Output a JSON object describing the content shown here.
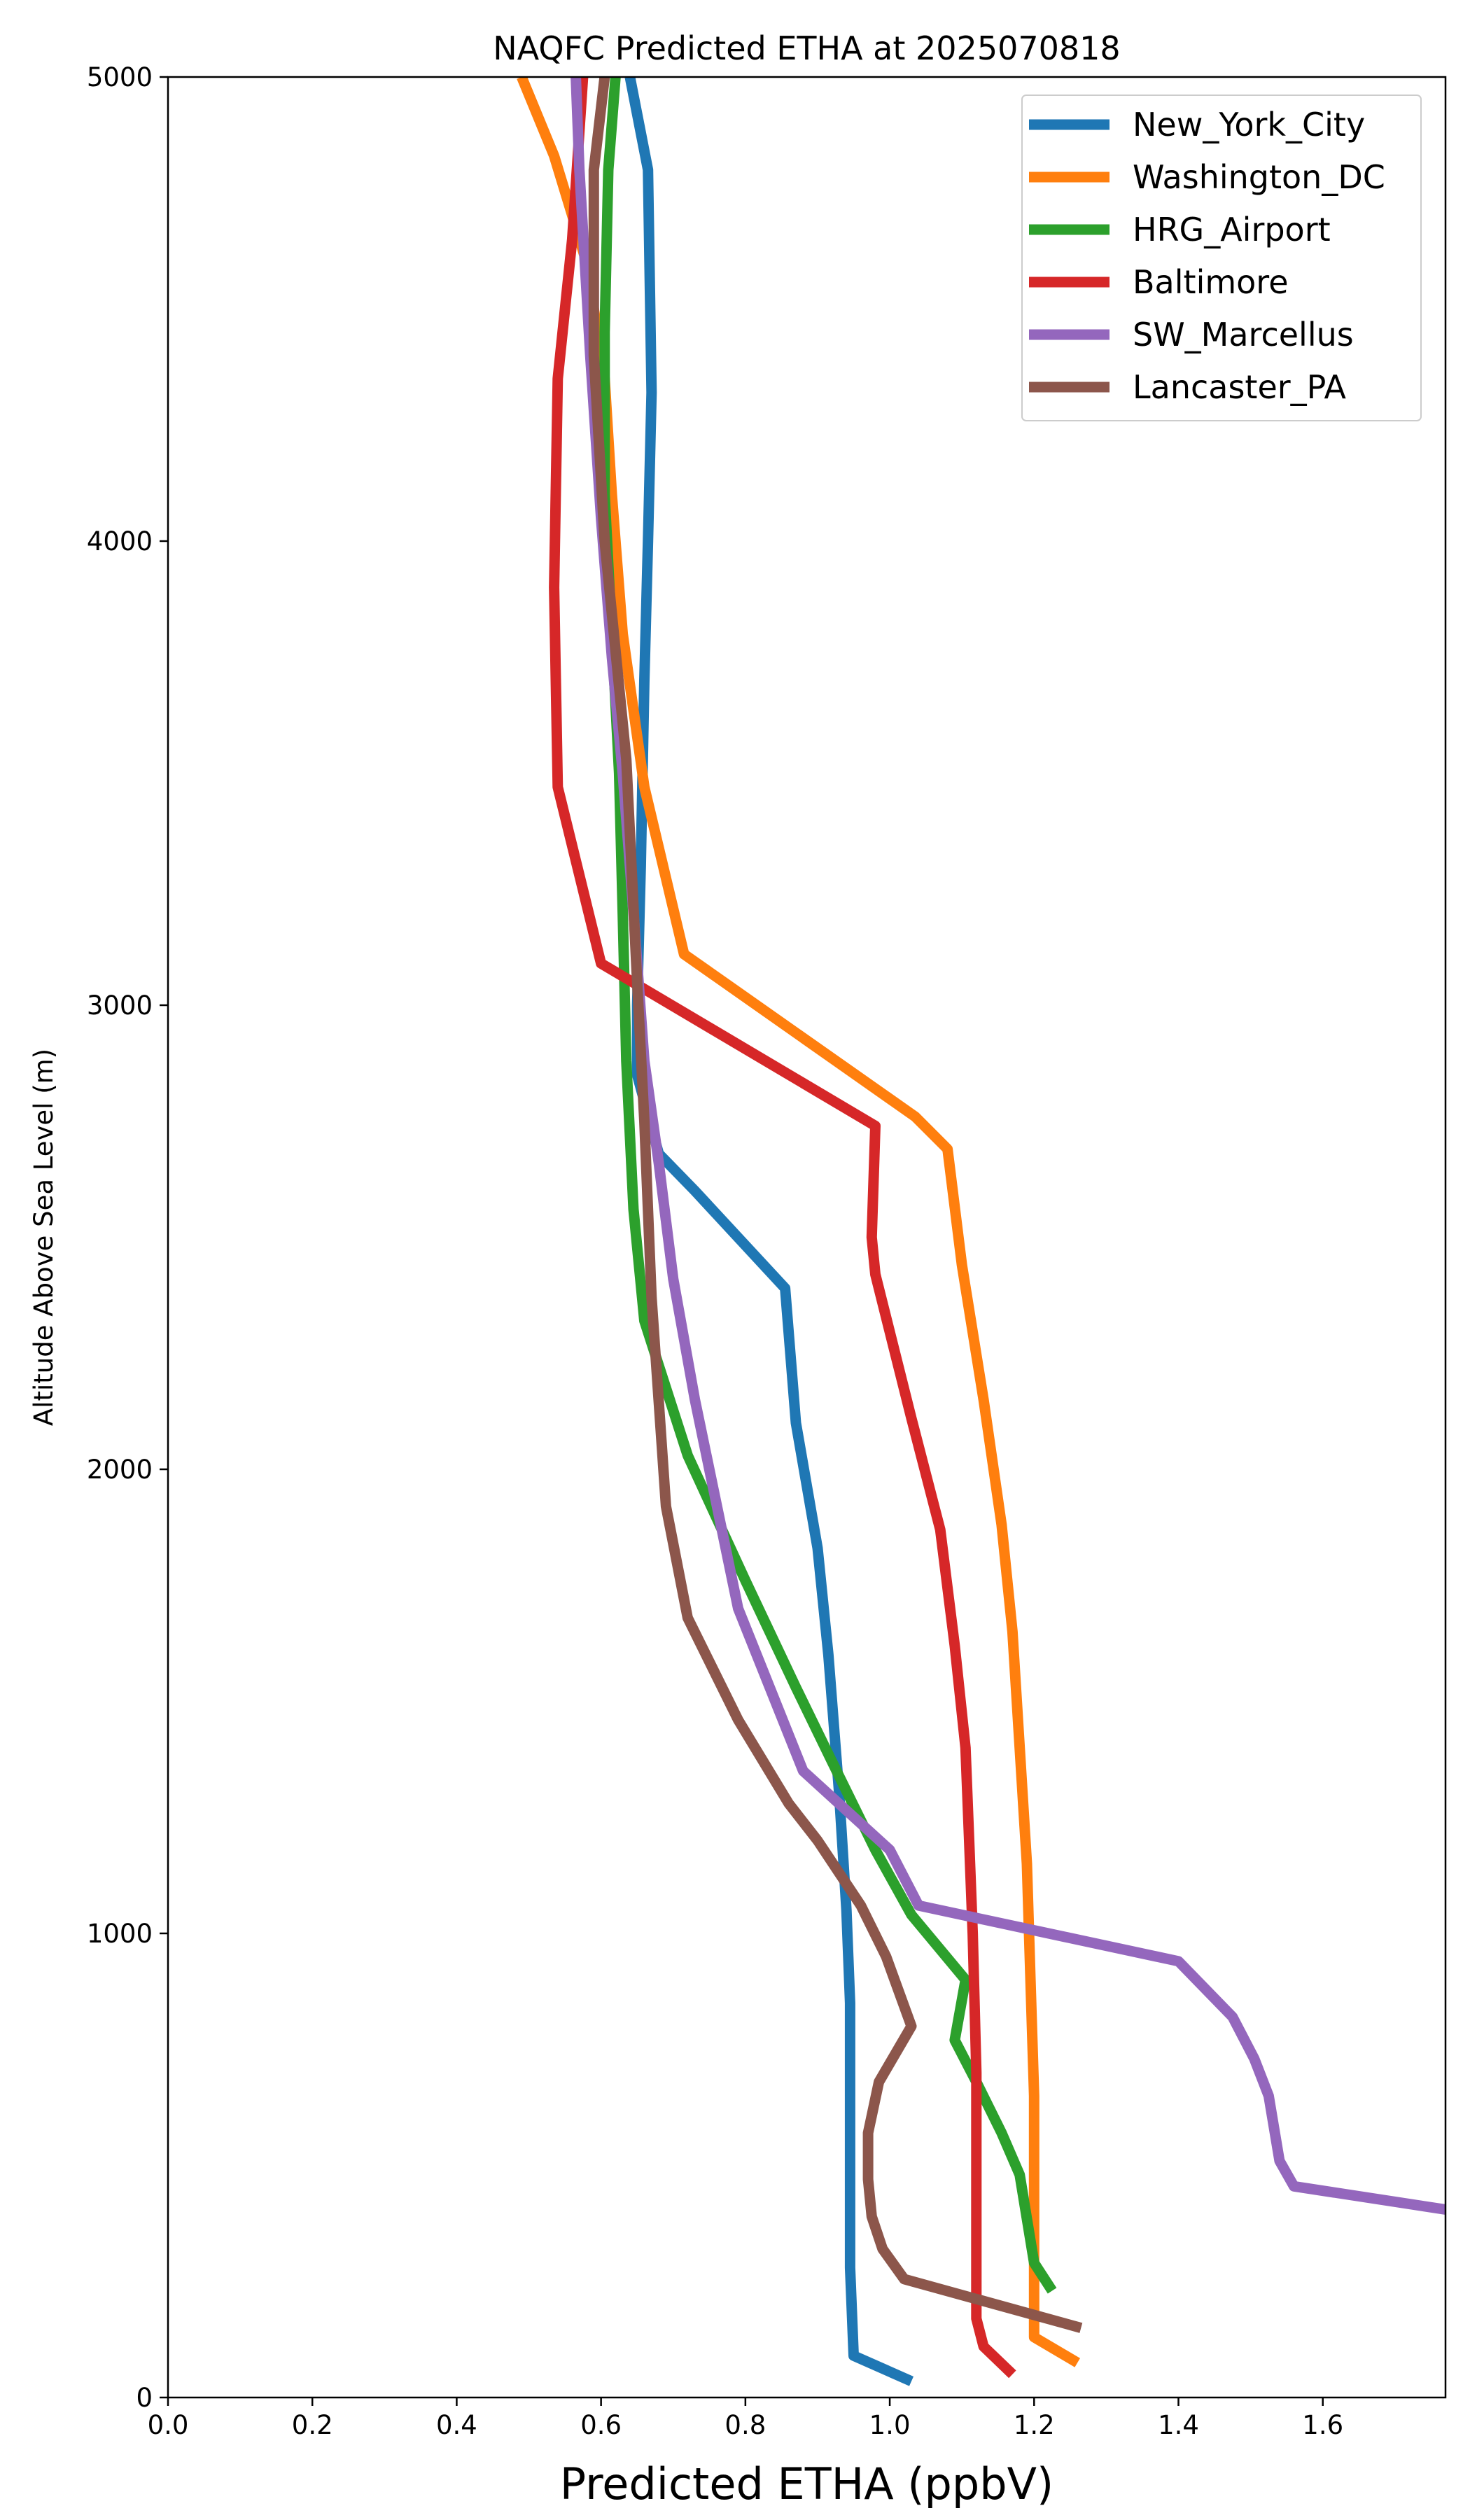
{
  "chart_data": {
    "type": "line",
    "title": "NAQFC Predicted ETHA at 2025070818",
    "xlabel": "Predicted ETHA (ppbV)",
    "ylabel": "Altitude Above Sea Level (m)",
    "xlim": [
      0.0,
      1.77
    ],
    "ylim": [
      0,
      5000
    ],
    "x_ticks": [
      "0.0",
      "0.2",
      "0.4",
      "0.6",
      "0.8",
      "1.0",
      "1.2",
      "1.4",
      "1.6"
    ],
    "y_ticks": [
      "0",
      "1000",
      "2000",
      "3000",
      "4000",
      "5000"
    ],
    "grid": false,
    "legend_position": "top-right",
    "series": [
      {
        "name": "New_York_City",
        "color": "#1f77b4",
        "points": [
          [
            1.03,
            35
          ],
          [
            0.95,
            90
          ],
          [
            0.945,
            280
          ],
          [
            0.945,
            500
          ],
          [
            0.945,
            850
          ],
          [
            0.94,
            1050
          ],
          [
            0.93,
            1300
          ],
          [
            0.915,
            1600
          ],
          [
            0.9,
            1830
          ],
          [
            0.87,
            2100
          ],
          [
            0.855,
            2390
          ],
          [
            0.73,
            2600
          ],
          [
            0.68,
            2680
          ],
          [
            0.65,
            2850
          ],
          [
            0.65,
            3000
          ],
          [
            0.655,
            3300
          ],
          [
            0.66,
            3700
          ],
          [
            0.665,
            4000
          ],
          [
            0.67,
            4320
          ],
          [
            0.665,
            4800
          ],
          [
            0.64,
            5000
          ]
        ]
      },
      {
        "name": "Washington_DC",
        "color": "#ff7f0e",
        "points": [
          [
            1.26,
            75
          ],
          [
            1.2,
            130
          ],
          [
            1.2,
            450
          ],
          [
            1.2,
            650
          ],
          [
            1.195,
            900
          ],
          [
            1.19,
            1150
          ],
          [
            1.18,
            1400
          ],
          [
            1.17,
            1650
          ],
          [
            1.155,
            1880
          ],
          [
            1.13,
            2150
          ],
          [
            1.1,
            2440
          ],
          [
            1.08,
            2690
          ],
          [
            1.035,
            2760
          ],
          [
            0.715,
            3110
          ],
          [
            0.66,
            3470
          ],
          [
            0.63,
            3800
          ],
          [
            0.615,
            4100
          ],
          [
            0.605,
            4350
          ],
          [
            0.58,
            4600
          ],
          [
            0.535,
            4830
          ],
          [
            0.49,
            5000
          ]
        ]
      },
      {
        "name": "HRG_Airport",
        "color": "#2ca02c",
        "points": [
          [
            1.225,
            230
          ],
          [
            1.2,
            290
          ],
          [
            1.18,
            480
          ],
          [
            1.155,
            570
          ],
          [
            1.12,
            680
          ],
          [
            1.09,
            770
          ],
          [
            1.105,
            900
          ],
          [
            1.03,
            1040
          ],
          [
            0.98,
            1180
          ],
          [
            0.92,
            1370
          ],
          [
            0.87,
            1530
          ],
          [
            0.8,
            1760
          ],
          [
            0.72,
            2030
          ],
          [
            0.66,
            2320
          ],
          [
            0.645,
            2560
          ],
          [
            0.635,
            2880
          ],
          [
            0.63,
            3200
          ],
          [
            0.625,
            3500
          ],
          [
            0.615,
            3800
          ],
          [
            0.605,
            4100
          ],
          [
            0.605,
            4450
          ],
          [
            0.61,
            4800
          ],
          [
            0.62,
            5000
          ]
        ]
      },
      {
        "name": "Baltimore",
        "color": "#d62728",
        "points": [
          [
            1.17,
            50
          ],
          [
            1.13,
            110
          ],
          [
            1.12,
            170
          ],
          [
            1.12,
            400
          ],
          [
            1.12,
            700
          ],
          [
            1.115,
            1000
          ],
          [
            1.11,
            1200
          ],
          [
            1.105,
            1400
          ],
          [
            1.09,
            1620
          ],
          [
            1.07,
            1870
          ],
          [
            1.03,
            2110
          ],
          [
            0.98,
            2420
          ],
          [
            0.975,
            2500
          ],
          [
            0.98,
            2740
          ],
          [
            0.6,
            3090
          ],
          [
            0.54,
            3470
          ],
          [
            0.535,
            3900
          ],
          [
            0.54,
            4350
          ],
          [
            0.56,
            4650
          ],
          [
            0.575,
            5000
          ]
        ]
      },
      {
        "name": "SW_Marcellus",
        "color": "#9467bd",
        "points": [
          [
            1.77,
            405
          ],
          [
            1.56,
            455
          ],
          [
            1.54,
            510
          ],
          [
            1.525,
            650
          ],
          [
            1.505,
            730
          ],
          [
            1.475,
            820
          ],
          [
            1.4,
            940
          ],
          [
            1.04,
            1060
          ],
          [
            1.0,
            1180
          ],
          [
            0.88,
            1350
          ],
          [
            0.79,
            1700
          ],
          [
            0.73,
            2150
          ],
          [
            0.7,
            2410
          ],
          [
            0.68,
            2660
          ],
          [
            0.66,
            2880
          ],
          [
            0.645,
            3200
          ],
          [
            0.63,
            3500
          ],
          [
            0.615,
            3750
          ],
          [
            0.6,
            4050
          ],
          [
            0.585,
            4400
          ],
          [
            0.57,
            4800
          ],
          [
            0.565,
            5000
          ]
        ]
      },
      {
        "name": "Lancaster_PA",
        "color": "#8c564b",
        "points": [
          [
            1.265,
            150
          ],
          [
            1.02,
            255
          ],
          [
            0.99,
            320
          ],
          [
            0.975,
            390
          ],
          [
            0.97,
            470
          ],
          [
            0.97,
            570
          ],
          [
            0.985,
            680
          ],
          [
            1.03,
            800
          ],
          [
            0.995,
            950
          ],
          [
            0.96,
            1060
          ],
          [
            0.9,
            1200
          ],
          [
            0.86,
            1280
          ],
          [
            0.79,
            1460
          ],
          [
            0.72,
            1680
          ],
          [
            0.69,
            1920
          ],
          [
            0.67,
            2370
          ],
          [
            0.66,
            2750
          ],
          [
            0.65,
            3050
          ],
          [
            0.635,
            3530
          ],
          [
            0.605,
            4000
          ],
          [
            0.59,
            4400
          ],
          [
            0.59,
            4800
          ],
          [
            0.605,
            5000
          ]
        ]
      }
    ]
  }
}
